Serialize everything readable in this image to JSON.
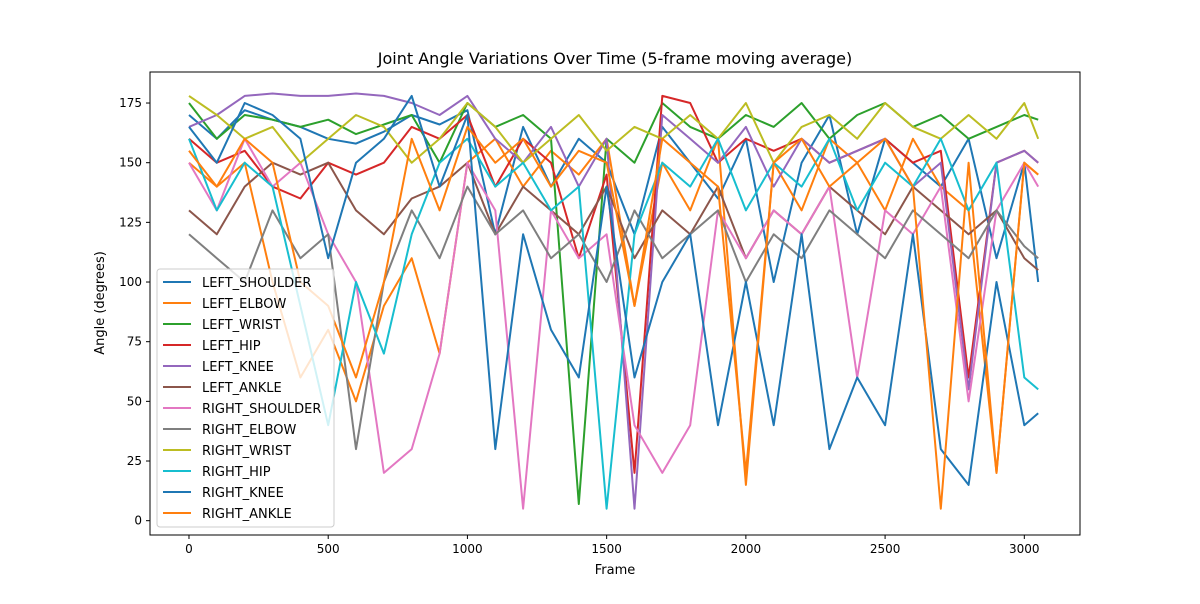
{
  "chart_data": {
    "type": "line",
    "title": "Joint Angle Variations Over Time (5-frame moving average)",
    "xlabel": "Frame",
    "ylabel": "Angle (degrees)",
    "xlim": [
      -140,
      3200
    ],
    "ylim": [
      -6,
      188
    ],
    "xticks": [
      0,
      500,
      1000,
      1500,
      2000,
      2500,
      3000
    ],
    "yticks": [
      0,
      25,
      50,
      75,
      100,
      125,
      150,
      175
    ],
    "legend_position": "lower-left",
    "grid": false,
    "series": [
      {
        "name": "LEFT_SHOULDER",
        "color": "#1f77b4",
        "x": [
          0,
          100,
          200,
          300,
          400,
          500,
          600,
          700,
          800,
          900,
          1000,
          1100,
          1200,
          1300,
          1400,
          1500,
          1600,
          1700,
          1800,
          1900,
          2000,
          2100,
          2200,
          2300,
          2400,
          2500,
          2600,
          2700,
          2800,
          2900,
          3000,
          3050
        ],
        "values": [
          170,
          160,
          172,
          168,
          165,
          160,
          158,
          163,
          170,
          166,
          172,
          120,
          165,
          140,
          160,
          150,
          120,
          165,
          150,
          135,
          160,
          100,
          150,
          170,
          120,
          160,
          150,
          140,
          160,
          110,
          150,
          100
        ]
      },
      {
        "name": "LEFT_ELBOW",
        "color": "#ff7f0e",
        "x": [
          0,
          100,
          200,
          300,
          400,
          500,
          600,
          700,
          800,
          900,
          1000,
          1100,
          1200,
          1300,
          1400,
          1500,
          1600,
          1700,
          1800,
          1900,
          2000,
          2100,
          2200,
          2300,
          2400,
          2500,
          2600,
          2700,
          2800,
          2900,
          3000,
          3050
        ],
        "values": [
          150,
          140,
          150,
          100,
          60,
          80,
          50,
          90,
          110,
          70,
          150,
          160,
          140,
          155,
          145,
          160,
          90,
          150,
          130,
          160,
          15,
          150,
          130,
          160,
          150,
          130,
          160,
          140,
          130,
          20,
          150,
          145
        ]
      },
      {
        "name": "LEFT_WRIST",
        "color": "#2ca02c",
        "x": [
          0,
          100,
          200,
          300,
          400,
          500,
          600,
          700,
          800,
          900,
          1000,
          1100,
          1200,
          1300,
          1400,
          1500,
          1600,
          1700,
          1800,
          1900,
          2000,
          2100,
          2200,
          2300,
          2400,
          2500,
          2600,
          2700,
          2800,
          2900,
          3000,
          3050
        ],
        "values": [
          175,
          160,
          170,
          168,
          165,
          168,
          162,
          166,
          170,
          150,
          175,
          165,
          170,
          160,
          7,
          160,
          150,
          175,
          165,
          160,
          170,
          165,
          175,
          160,
          170,
          175,
          165,
          170,
          160,
          165,
          170,
          168
        ]
      },
      {
        "name": "LEFT_HIP",
        "color": "#d62728",
        "x": [
          0,
          100,
          200,
          300,
          400,
          500,
          600,
          700,
          800,
          900,
          1000,
          1100,
          1200,
          1300,
          1400,
          1500,
          1600,
          1700,
          1800,
          1900,
          2000,
          2100,
          2200,
          2300,
          2400,
          2500,
          2600,
          2700,
          2800,
          2900,
          3000,
          3050
        ],
        "values": [
          160,
          150,
          155,
          140,
          135,
          150,
          145,
          150,
          165,
          160,
          170,
          140,
          160,
          150,
          110,
          145,
          20,
          178,
          175,
          150,
          160,
          155,
          160,
          150,
          155,
          160,
          150,
          155,
          60,
          150,
          155,
          150
        ]
      },
      {
        "name": "LEFT_KNEE",
        "color": "#9467bd",
        "x": [
          0,
          100,
          200,
          300,
          400,
          500,
          600,
          700,
          800,
          900,
          1000,
          1100,
          1200,
          1300,
          1400,
          1500,
          1600,
          1700,
          1800,
          1900,
          2000,
          2100,
          2200,
          2300,
          2400,
          2500,
          2600,
          2700,
          2800,
          2900,
          3000,
          3050
        ],
        "values": [
          165,
          170,
          178,
          179,
          178,
          178,
          179,
          178,
          175,
          170,
          178,
          160,
          150,
          165,
          140,
          160,
          5,
          170,
          160,
          150,
          165,
          140,
          160,
          150,
          155,
          160,
          140,
          150,
          55,
          150,
          155,
          150
        ]
      },
      {
        "name": "LEFT_ANKLE",
        "color": "#8c564b",
        "x": [
          0,
          100,
          200,
          300,
          400,
          500,
          600,
          700,
          800,
          900,
          1000,
          1100,
          1200,
          1300,
          1400,
          1500,
          1600,
          1700,
          1800,
          1900,
          2000,
          2100,
          2200,
          2300,
          2400,
          2500,
          2600,
          2700,
          2800,
          2900,
          3000,
          3050
        ],
        "values": [
          130,
          120,
          140,
          150,
          145,
          150,
          130,
          120,
          135,
          140,
          150,
          120,
          140,
          130,
          120,
          140,
          110,
          130,
          120,
          140,
          110,
          130,
          120,
          140,
          130,
          120,
          140,
          130,
          120,
          130,
          110,
          105
        ]
      },
      {
        "name": "RIGHT_SHOULDER",
        "color": "#e377c2",
        "x": [
          0,
          100,
          200,
          300,
          400,
          500,
          600,
          700,
          800,
          900,
          1000,
          1100,
          1200,
          1300,
          1400,
          1500,
          1600,
          1700,
          1800,
          1900,
          2000,
          2100,
          2200,
          2300,
          2400,
          2500,
          2600,
          2700,
          2800,
          2900,
          3000,
          3050
        ],
        "values": [
          150,
          130,
          160,
          140,
          150,
          120,
          100,
          20,
          30,
          70,
          150,
          130,
          5,
          130,
          110,
          120,
          40,
          20,
          40,
          130,
          110,
          130,
          120,
          140,
          60,
          130,
          120,
          140,
          50,
          130,
          150,
          140
        ]
      },
      {
        "name": "RIGHT_ELBOW",
        "color": "#7f7f7f",
        "x": [
          0,
          100,
          200,
          300,
          400,
          500,
          600,
          700,
          800,
          900,
          1000,
          1100,
          1200,
          1300,
          1400,
          1500,
          1600,
          1700,
          1800,
          1900,
          2000,
          2100,
          2200,
          2300,
          2400,
          2500,
          2600,
          2700,
          2800,
          2900,
          3000,
          3050
        ],
        "values": [
          120,
          110,
          100,
          130,
          110,
          120,
          30,
          100,
          130,
          110,
          140,
          120,
          130,
          110,
          120,
          100,
          130,
          110,
          120,
          130,
          100,
          120,
          110,
          130,
          120,
          110,
          130,
          120,
          110,
          130,
          115,
          110
        ]
      },
      {
        "name": "RIGHT_WRIST",
        "color": "#bcbd22",
        "x": [
          0,
          100,
          200,
          300,
          400,
          500,
          600,
          700,
          800,
          900,
          1000,
          1100,
          1200,
          1300,
          1400,
          1500,
          1600,
          1700,
          1800,
          1900,
          2000,
          2100,
          2200,
          2300,
          2400,
          2500,
          2600,
          2700,
          2800,
          2900,
          3000,
          3050
        ],
        "values": [
          178,
          170,
          160,
          165,
          150,
          160,
          170,
          165,
          150,
          160,
          175,
          165,
          150,
          160,
          170,
          155,
          165,
          160,
          170,
          160,
          175,
          150,
          165,
          170,
          160,
          175,
          165,
          160,
          170,
          160,
          175,
          160
        ]
      },
      {
        "name": "RIGHT_HIP",
        "color": "#17becf",
        "x": [
          0,
          100,
          200,
          300,
          400,
          500,
          600,
          700,
          800,
          900,
          1000,
          1100,
          1200,
          1300,
          1400,
          1500,
          1600,
          1700,
          1800,
          1900,
          2000,
          2100,
          2200,
          2300,
          2400,
          2500,
          2600,
          2700,
          2800,
          2900,
          3000,
          3050
        ],
        "values": [
          160,
          130,
          150,
          140,
          90,
          40,
          100,
          70,
          120,
          150,
          160,
          140,
          150,
          130,
          140,
          5,
          120,
          150,
          140,
          160,
          130,
          150,
          140,
          160,
          130,
          150,
          140,
          160,
          130,
          150,
          60,
          55
        ]
      },
      {
        "name": "RIGHT_KNEE",
        "color": "#1f77b4",
        "x": [
          0,
          100,
          200,
          300,
          400,
          500,
          600,
          700,
          800,
          900,
          1000,
          1100,
          1200,
          1300,
          1400,
          1500,
          1600,
          1700,
          1800,
          1900,
          2000,
          2100,
          2200,
          2300,
          2400,
          2500,
          2600,
          2700,
          2800,
          2900,
          3000,
          3050
        ],
        "values": [
          165,
          150,
          175,
          170,
          160,
          110,
          150,
          160,
          178,
          140,
          170,
          30,
          120,
          80,
          60,
          140,
          60,
          100,
          120,
          40,
          100,
          40,
          120,
          30,
          60,
          40,
          120,
          30,
          15,
          100,
          40,
          45
        ]
      },
      {
        "name": "RIGHT_ANKLE",
        "color": "#ff7f0e",
        "x": [
          0,
          100,
          200,
          300,
          400,
          500,
          600,
          700,
          800,
          900,
          1000,
          1100,
          1200,
          1300,
          1400,
          1500,
          1600,
          1700,
          1800,
          1900,
          2000,
          2100,
          2200,
          2300,
          2400,
          2500,
          2600,
          2700,
          2800,
          2900,
          3000,
          3050
        ],
        "values": [
          155,
          140,
          160,
          150,
          100,
          90,
          60,
          100,
          160,
          130,
          165,
          150,
          160,
          140,
          155,
          150,
          90,
          160,
          150,
          140,
          20,
          150,
          160,
          140,
          150,
          160,
          140,
          5,
          150,
          20,
          150,
          145
        ]
      }
    ]
  }
}
